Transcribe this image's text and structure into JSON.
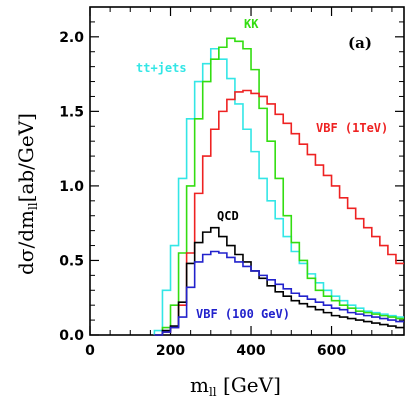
{
  "chart_data": {
    "type": "line",
    "style": "step-histogram",
    "panel_label": "(a)",
    "title": "",
    "xlabel_main": "m",
    "xlabel_sub": "ll",
    "xlabel_unit": " [GeV]",
    "ylabel_main": "dσ/dm",
    "ylabel_sub": "ll",
    "ylabel_unit": "[ab/GeV]",
    "xlim": [
      0,
      780
    ],
    "ylim": [
      0,
      2.2
    ],
    "xticks": [
      0,
      200,
      400,
      600
    ],
    "yticks": [
      0.0,
      0.5,
      1.0,
      1.5,
      2.0
    ],
    "ytick_labels": [
      "0.0",
      "0.5",
      "1.0",
      "1.5",
      "2.0"
    ],
    "bin_edges": [
      160,
      180,
      200,
      220,
      240,
      260,
      280,
      300,
      320,
      340,
      360,
      380,
      400,
      420,
      440,
      460,
      480,
      500,
      520,
      540,
      560,
      580,
      600,
      620,
      640,
      660,
      680,
      700,
      720,
      740,
      760,
      780
    ],
    "series": [
      {
        "name": "tt+jets",
        "color": "#33e6e6",
        "values": [
          0.03,
          0.3,
          0.6,
          1.05,
          1.45,
          1.7,
          1.82,
          1.92,
          1.85,
          1.72,
          1.55,
          1.38,
          1.23,
          1.05,
          0.9,
          0.78,
          0.66,
          0.56,
          0.48,
          0.41,
          0.35,
          0.3,
          0.26,
          0.23,
          0.2,
          0.18,
          0.16,
          0.15,
          0.14,
          0.13,
          0.12
        ]
      },
      {
        "name": "KK",
        "color": "#33dd11",
        "values": [
          0,
          0.05,
          0.2,
          0.55,
          1.0,
          1.45,
          1.7,
          1.85,
          1.93,
          1.99,
          1.97,
          1.92,
          1.78,
          1.52,
          1.3,
          1.05,
          0.8,
          0.62,
          0.5,
          0.38,
          0.3,
          0.26,
          0.23,
          0.2,
          0.18,
          0.16,
          0.15,
          0.14,
          0.13,
          0.12,
          0.11
        ]
      },
      {
        "name": "VBF (1TeV)",
        "color": "#ee2222",
        "values": [
          0,
          0.02,
          0.05,
          0.2,
          0.55,
          0.95,
          1.2,
          1.38,
          1.5,
          1.58,
          1.63,
          1.64,
          1.62,
          1.6,
          1.55,
          1.48,
          1.42,
          1.35,
          1.28,
          1.21,
          1.14,
          1.07,
          1.0,
          0.92,
          0.85,
          0.78,
          0.72,
          0.66,
          0.6,
          0.54,
          0.48
        ]
      },
      {
        "name": "QCD",
        "color": "#000000",
        "values": [
          0,
          0.03,
          0.06,
          0.22,
          0.48,
          0.62,
          0.69,
          0.72,
          0.66,
          0.6,
          0.54,
          0.49,
          0.43,
          0.38,
          0.33,
          0.29,
          0.26,
          0.23,
          0.21,
          0.19,
          0.17,
          0.15,
          0.13,
          0.12,
          0.11,
          0.1,
          0.09,
          0.08,
          0.07,
          0.06,
          0.05
        ]
      },
      {
        "name": "VBF (100 GeV)",
        "color": "#2222cc",
        "values": [
          0,
          0.02,
          0.05,
          0.12,
          0.32,
          0.49,
          0.54,
          0.56,
          0.55,
          0.52,
          0.49,
          0.46,
          0.43,
          0.4,
          0.37,
          0.34,
          0.31,
          0.28,
          0.26,
          0.24,
          0.22,
          0.2,
          0.18,
          0.17,
          0.15,
          0.14,
          0.13,
          0.12,
          0.11,
          0.1,
          0.09
        ]
      }
    ]
  }
}
